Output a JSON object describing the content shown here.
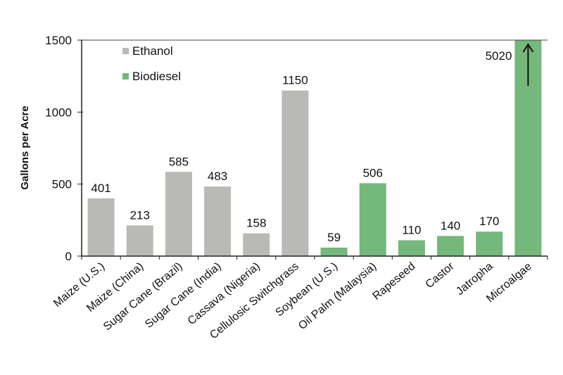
{
  "chart_data": {
    "type": "bar",
    "title": "",
    "xlabel": "",
    "ylabel": "Gallons per Acre",
    "ylim": [
      0,
      1500
    ],
    "yticks": [
      0,
      500,
      1000,
      1500
    ],
    "grid": false,
    "legend_position": "top-left inside",
    "categories": [
      "Maize (U.S.)",
      "Maize (China)",
      "Sugar Cane (Brazil)",
      "Sugar Cane (India)",
      "Cassava (Nigeria)",
      "Cellulosic Switchgrass",
      "Soybean (U.S.)",
      "Oil Palm (Malaysia)",
      "Rapeseed",
      "Castor",
      "Jatropha",
      "Microalgae"
    ],
    "values": [
      401,
      213,
      585,
      483,
      158,
      1150,
      59,
      506,
      110,
      140,
      170,
      5020
    ],
    "series_assignment": [
      "Ethanol",
      "Ethanol",
      "Ethanol",
      "Ethanol",
      "Ethanol",
      "Ethanol",
      "Biodiesel",
      "Biodiesel",
      "Biodiesel",
      "Biodiesel",
      "Biodiesel",
      "Biodiesel"
    ],
    "series": [
      {
        "name": "Ethanol",
        "color": "#b9b9b5",
        "values": [
          401,
          213,
          585,
          483,
          158,
          1150,
          null,
          null,
          null,
          null,
          null,
          null
        ]
      },
      {
        "name": "Biodiesel",
        "color": "#74b87b",
        "values": [
          null,
          null,
          null,
          null,
          null,
          null,
          59,
          506,
          110,
          140,
          170,
          5020
        ]
      }
    ],
    "annotations": [
      "Microalgae bar exceeds axis (5020) with upward arrow"
    ]
  },
  "legend": {
    "items": [
      {
        "label": "Ethanol",
        "color": "#b9b9b5"
      },
      {
        "label": "Biodiesel",
        "color": "#74b87b"
      }
    ]
  }
}
